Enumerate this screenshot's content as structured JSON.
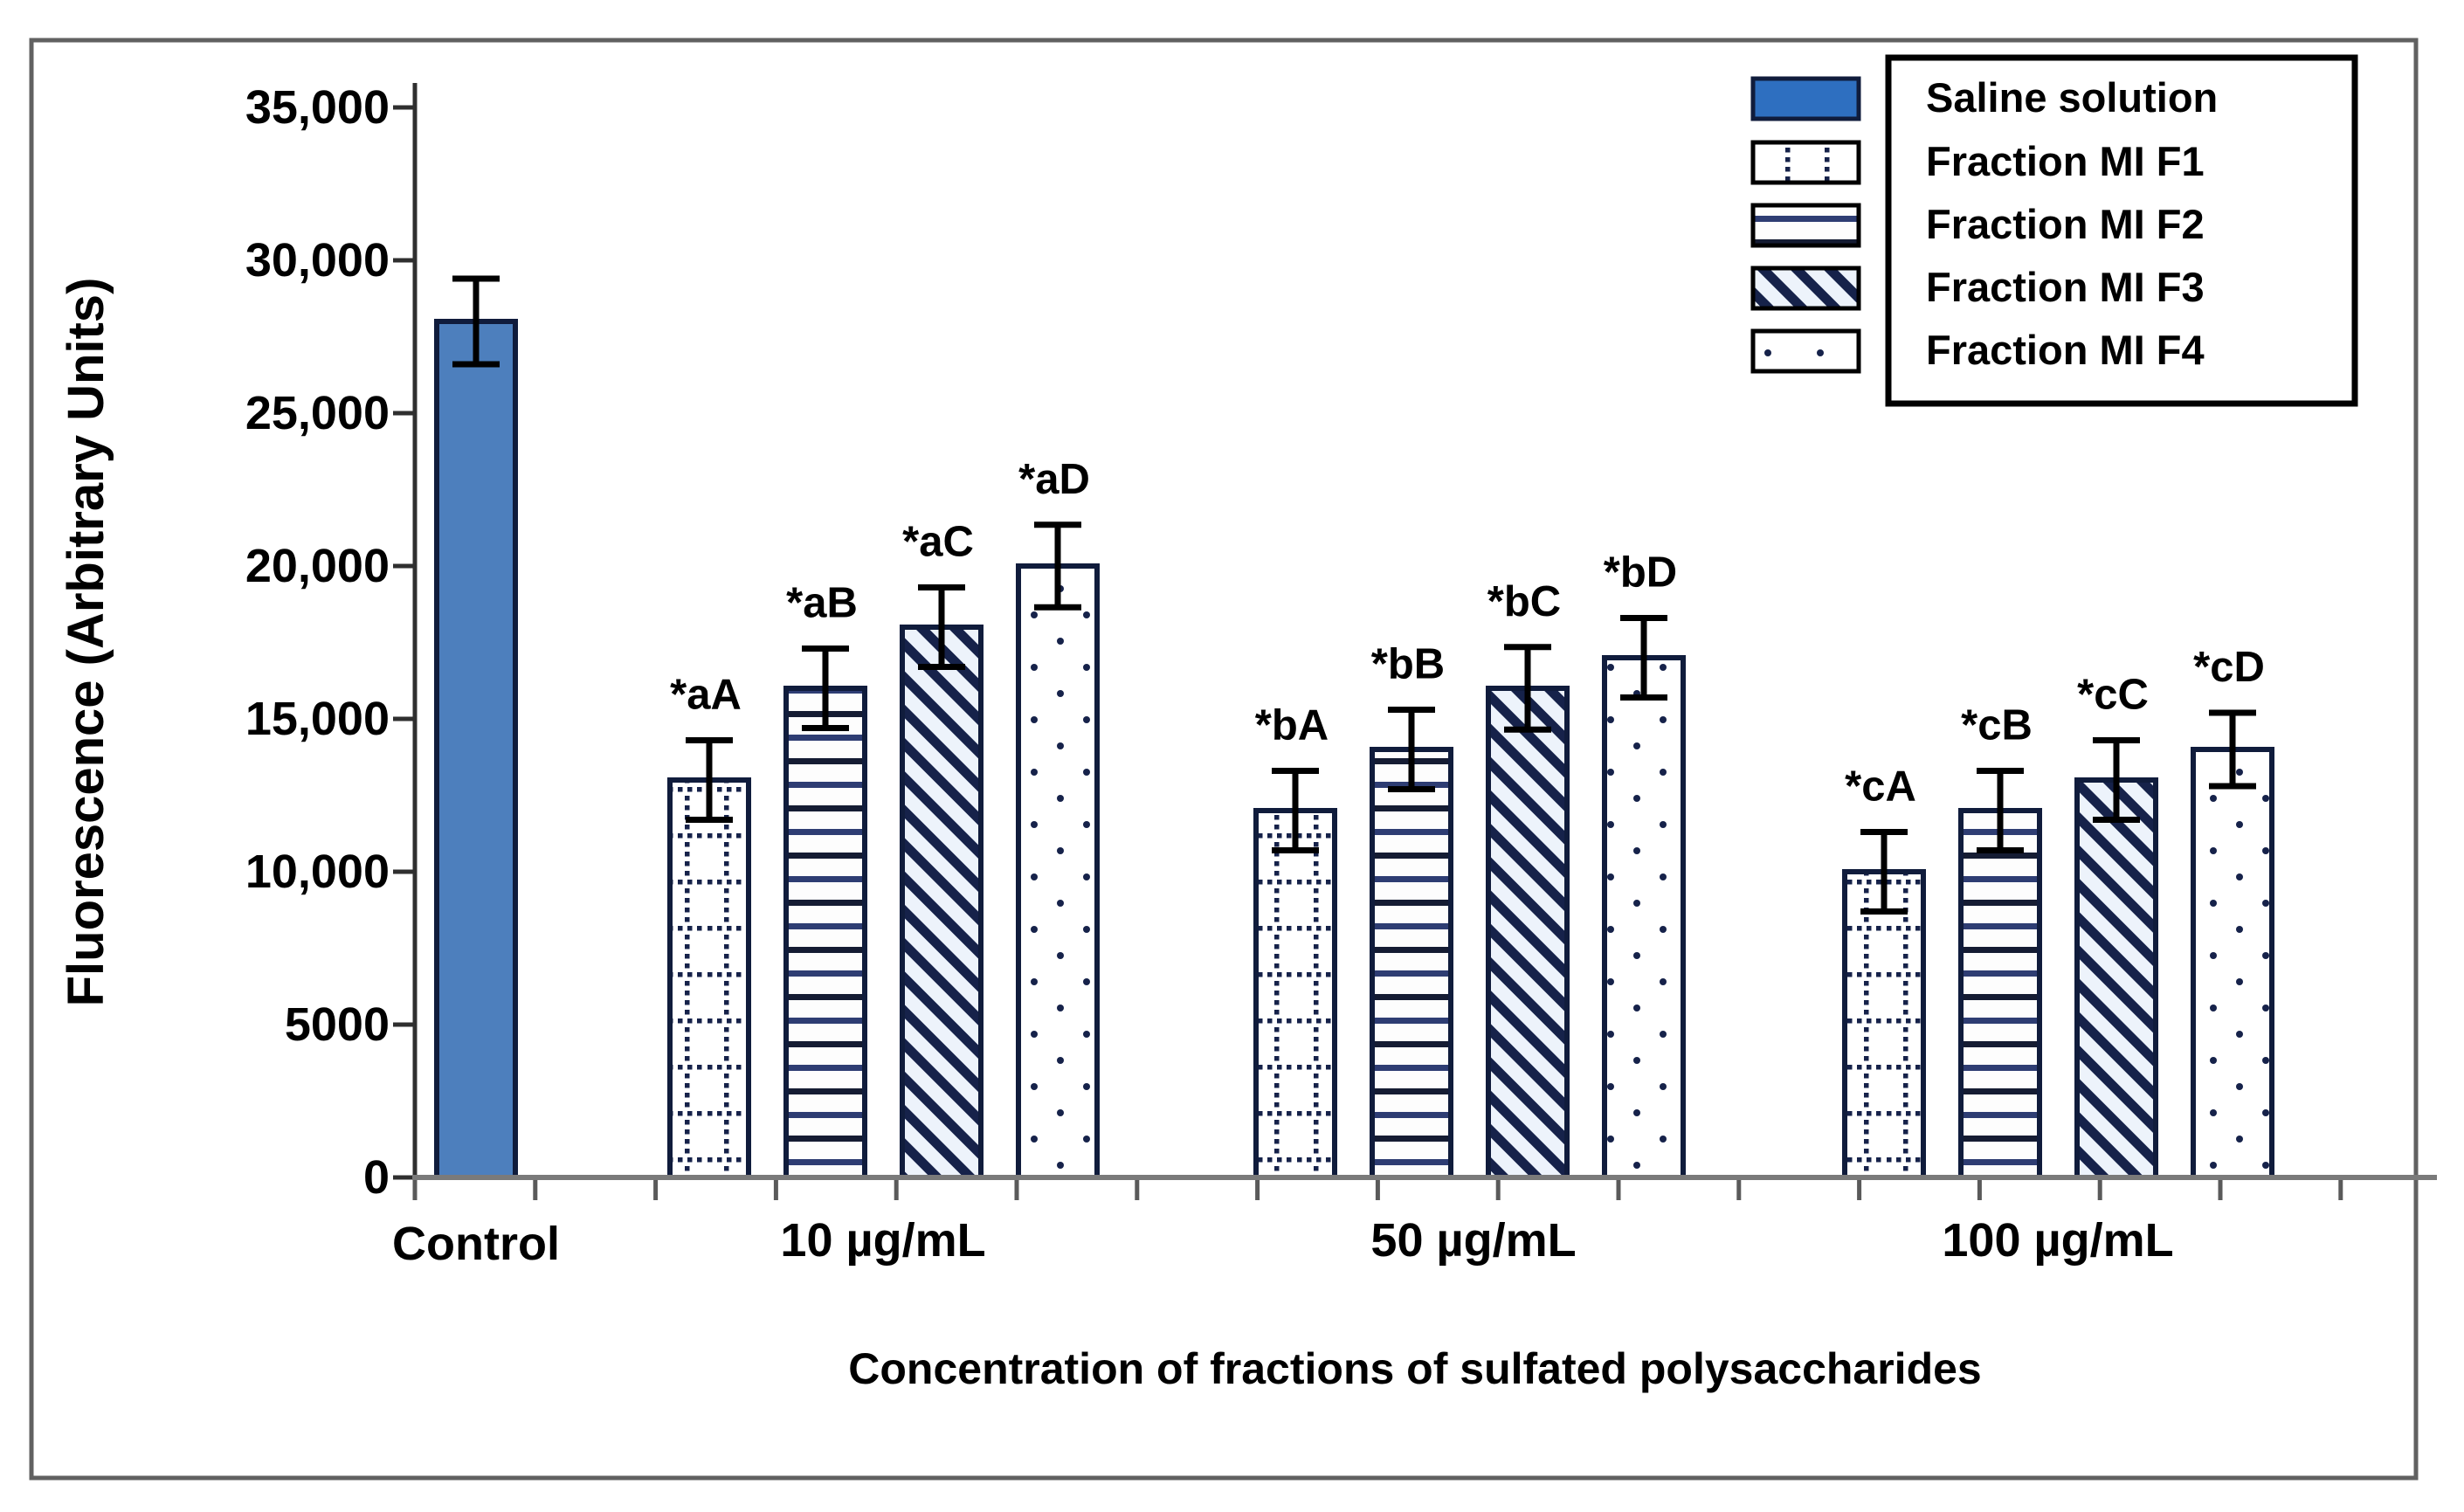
{
  "chart_data": {
    "type": "bar",
    "title": "",
    "ylabel": "Fluorescence (Arbitrary Units)",
    "xlabel": "Concentration of fractions of sulfated polysaccharides",
    "ylim": [
      0,
      35000
    ],
    "ytick_step": 5000,
    "ytick_labels": [
      "0",
      "5000",
      "10,000",
      "15,000",
      "20,000",
      "25,000",
      "30,000",
      "35,000"
    ],
    "grid": false,
    "legend_position": "top-right",
    "legend": [
      {
        "label": "Saline solution",
        "pattern": "solid"
      },
      {
        "label": "Fraction MI F1",
        "pattern": "dotted-grid"
      },
      {
        "label": "Fraction MI F2",
        "pattern": "horizontal-stripes"
      },
      {
        "label": "Fraction MI F3",
        "pattern": "diagonal-stripes"
      },
      {
        "label": "Fraction MI F4",
        "pattern": "sparse-dots"
      }
    ],
    "groups": [
      {
        "label": "Control",
        "bars": [
          {
            "series": "Saline solution",
            "value": 28000,
            "error": 1400,
            "annotation": ""
          }
        ]
      },
      {
        "label": "10 µg/mL",
        "bars": [
          {
            "series": "Fraction MI F1",
            "value": 13000,
            "error": 1300,
            "annotation": "*aA"
          },
          {
            "series": "Fraction MI F2",
            "value": 16000,
            "error": 1300,
            "annotation": "*aB"
          },
          {
            "series": "Fraction MI F3",
            "value": 18000,
            "error": 1300,
            "annotation": "*aC"
          },
          {
            "series": "Fraction MI F4",
            "value": 20000,
            "error": 1350,
            "annotation": "*aD"
          }
        ]
      },
      {
        "label": "50 µg/mL",
        "bars": [
          {
            "series": "Fraction MI F1",
            "value": 12000,
            "error": 1300,
            "annotation": "*bA"
          },
          {
            "series": "Fraction MI F2",
            "value": 14000,
            "error": 1300,
            "annotation": "*bB"
          },
          {
            "series": "Fraction MI F3",
            "value": 16000,
            "error": 1350,
            "annotation": "*bC"
          },
          {
            "series": "Fraction MI F4",
            "value": 17000,
            "error": 1300,
            "annotation": "*bD"
          }
        ]
      },
      {
        "label": "100 µg/mL",
        "bars": [
          {
            "series": "Fraction MI F1",
            "value": 10000,
            "error": 1300,
            "annotation": "*cA"
          },
          {
            "series": "Fraction MI F2",
            "value": 12000,
            "error": 1300,
            "annotation": "*cB"
          },
          {
            "series": "Fraction MI F3",
            "value": 13000,
            "error": 1300,
            "annotation": "*cC"
          },
          {
            "series": "Fraction MI F4",
            "value": 14000,
            "error": 1200,
            "annotation": "*cD"
          }
        ]
      }
    ],
    "colors": {
      "saline_bar_fill": "#4d7fbd",
      "saline_legend_fill": "#2e6fc0",
      "pattern_ink": "#16224a",
      "stripe_dark": "#151c33",
      "stripe_blue": "#2e3d73",
      "bar_outline": "#101c3c",
      "x_axis_color": "#7a7a7a",
      "y_axis_color": "#2f2f2f",
      "error_bar_color": "#000000",
      "figure_border_color": "#616161"
    }
  }
}
